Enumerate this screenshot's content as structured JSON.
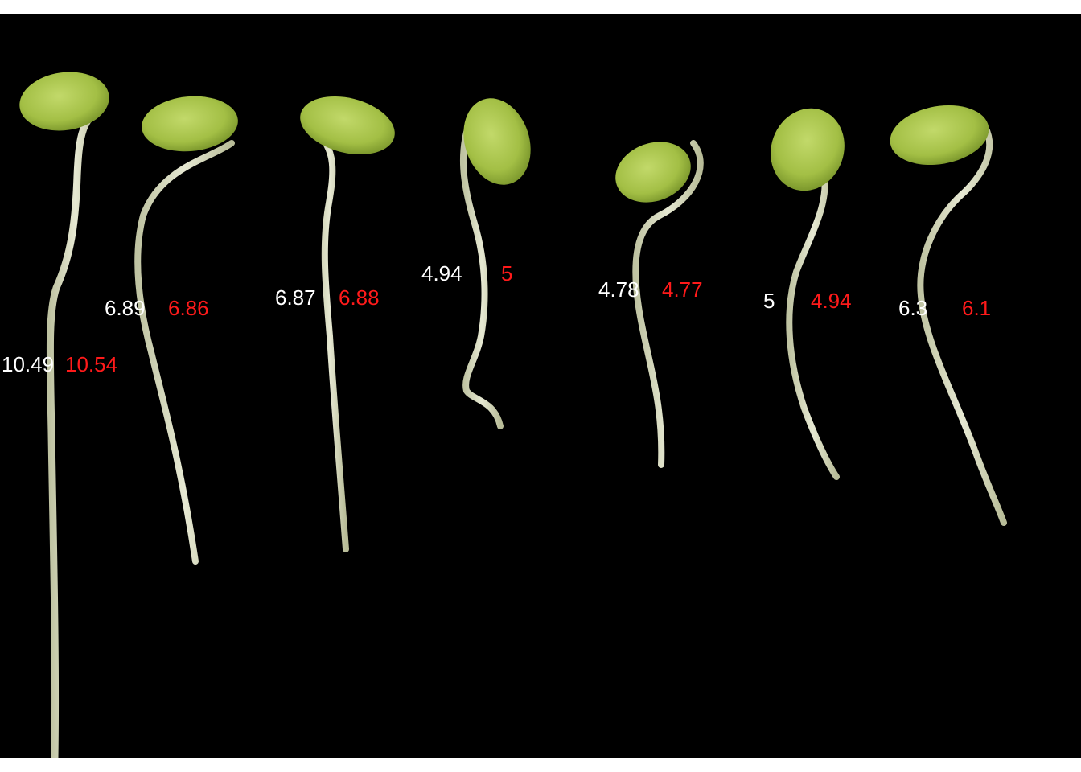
{
  "image": {
    "background_color": "#000000",
    "frame_color": "#ffffff",
    "seed_color": "#a8c44a",
    "hypocotyl_color": "#d9dcc2",
    "label_colors": {
      "white": "#ffffff",
      "red": "#ff1a1a"
    }
  },
  "sprouts": [
    {
      "white_value": "10.49",
      "red_value": "10.54"
    },
    {
      "white_value": "6.89",
      "red_value": "6.86"
    },
    {
      "white_value": "6.87",
      "red_value": "6.88"
    },
    {
      "white_value": "4.94",
      "red_value": "5"
    },
    {
      "white_value": "4.78",
      "red_value": "4.77"
    },
    {
      "white_value": "5",
      "red_value": "4.94"
    },
    {
      "white_value": "6.3",
      "red_value": "6.1"
    }
  ]
}
